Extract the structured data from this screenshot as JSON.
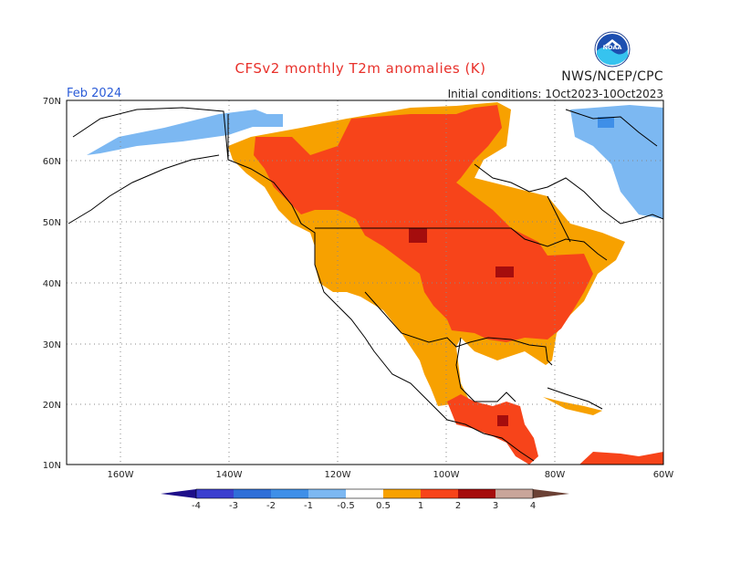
{
  "title": "CFSv2 monthly T2m anomalies (K)",
  "agency": "NWS/NCEP/CPC",
  "month": "Feb 2024",
  "initial_conditions": "Initial conditions: 1Oct2023-10Oct2023",
  "logo": {
    "name": "noaa-logo",
    "text": "NOAA"
  },
  "map": {
    "region": "North America",
    "lat_labels": [
      "70N",
      "60N",
      "50N",
      "40N",
      "30N",
      "20N",
      "10N"
    ],
    "lon_labels": [
      "160W",
      "140W",
      "120W",
      "100W",
      "80W",
      "60W"
    ],
    "grid": true
  },
  "legend": {
    "tick_labels": [
      "-4",
      "-3",
      "-2",
      "-1",
      "-0.5",
      "0.5",
      "1",
      "2",
      "3",
      "4"
    ],
    "colors": [
      "#1e0f8a",
      "#3b3fcf",
      "#2f6fd8",
      "#3f8fe8",
      "#7cb8f2",
      "#ffffff",
      "#f7a100",
      "#f7441a",
      "#a50d0d",
      "#c9a59a",
      "#6b4135"
    ]
  }
}
